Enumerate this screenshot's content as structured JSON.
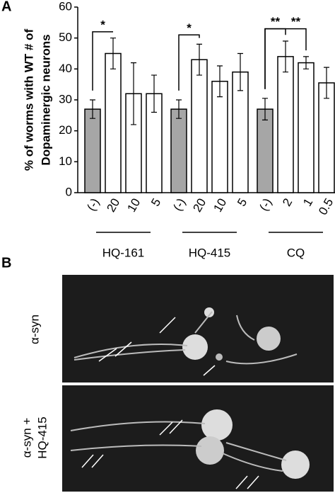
{
  "chart_data": {
    "type": "bar",
    "ylabel": [
      "% of worms with WT # of",
      "Dopaminergic neurons"
    ],
    "categories": [
      "(-)",
      "20",
      "10",
      "5",
      "(-)",
      "20",
      "10",
      "5",
      "(-)",
      "2",
      "1",
      "0.5"
    ],
    "values": [
      27,
      45,
      32,
      32,
      27,
      43,
      36,
      39,
      27,
      44,
      42,
      35.5
    ],
    "errors": [
      3,
      5,
      10,
      6,
      3,
      5,
      5,
      6,
      3.5,
      5,
      2,
      5
    ],
    "colors": [
      "#a6a6a6",
      "#ffffff",
      "#ffffff",
      "#ffffff",
      "#a6a6a6",
      "#ffffff",
      "#ffffff",
      "#ffffff",
      "#a6a6a6",
      "#ffffff",
      "#ffffff",
      "#ffffff"
    ],
    "group_labels": [
      "HQ-161",
      "HQ-415",
      "CQ"
    ],
    "significance": [
      "*",
      "*",
      "**",
      "**"
    ],
    "ylim": [
      0,
      60
    ],
    "yticks": [
      0,
      10,
      20,
      30,
      40,
      50,
      60
    ]
  },
  "panels": {
    "a": "A",
    "b": "B"
  },
  "images": [
    {
      "label": [
        "α-syn"
      ]
    },
    {
      "label": [
        "α-syn +",
        "HQ-415"
      ]
    }
  ]
}
